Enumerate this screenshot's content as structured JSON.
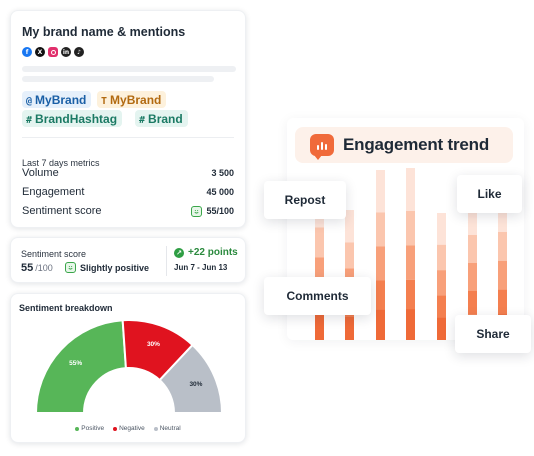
{
  "brand_card": {
    "title": "My brand name & mentions",
    "social_icons": [
      "facebook-icon",
      "x-icon",
      "instagram-icon",
      "linkedin-icon",
      "tiktok-icon"
    ],
    "keywords": [
      {
        "prefix": "@",
        "label": "MyBrand"
      },
      {
        "prefix": "T",
        "label": "MyBrand"
      },
      {
        "prefix": "#",
        "label": "BrandHashtag"
      },
      {
        "prefix": "#",
        "label": "Brand"
      }
    ],
    "metrics_heading": "Last 7 days metrics",
    "metrics": [
      {
        "label": "Volume",
        "value": "3 500"
      },
      {
        "label": "Engagement",
        "value": "45 000"
      },
      {
        "label": "Sentiment score",
        "value": "55/100"
      }
    ]
  },
  "score_card": {
    "label": "Sentiment score",
    "score": "55",
    "out_of": "/100",
    "sentiment": "Slightly positive",
    "change": "+22 points",
    "date_range": "Jun 7 - Jun 13"
  },
  "breakdown_card": {
    "title": "Sentiment breakdown",
    "chart_data": {
      "type": "pie",
      "categories": [
        "Positive",
        "Negative",
        "Neutral"
      ],
      "values": [
        55,
        30,
        30
      ],
      "labels": [
        "55%",
        "30%",
        "30%"
      ],
      "colors": [
        "#57b658",
        "#e0131f",
        "#b9bfc8"
      ],
      "legend": "bottom"
    }
  },
  "engagement": {
    "title": "Engagement trend",
    "icon": "chart-bubble-icon",
    "tags": [
      "Repost",
      "Like",
      "Comments",
      "Share"
    ],
    "colors": {
      "accent": "#f06a3a",
      "bar": "#f26c3c"
    }
  }
}
